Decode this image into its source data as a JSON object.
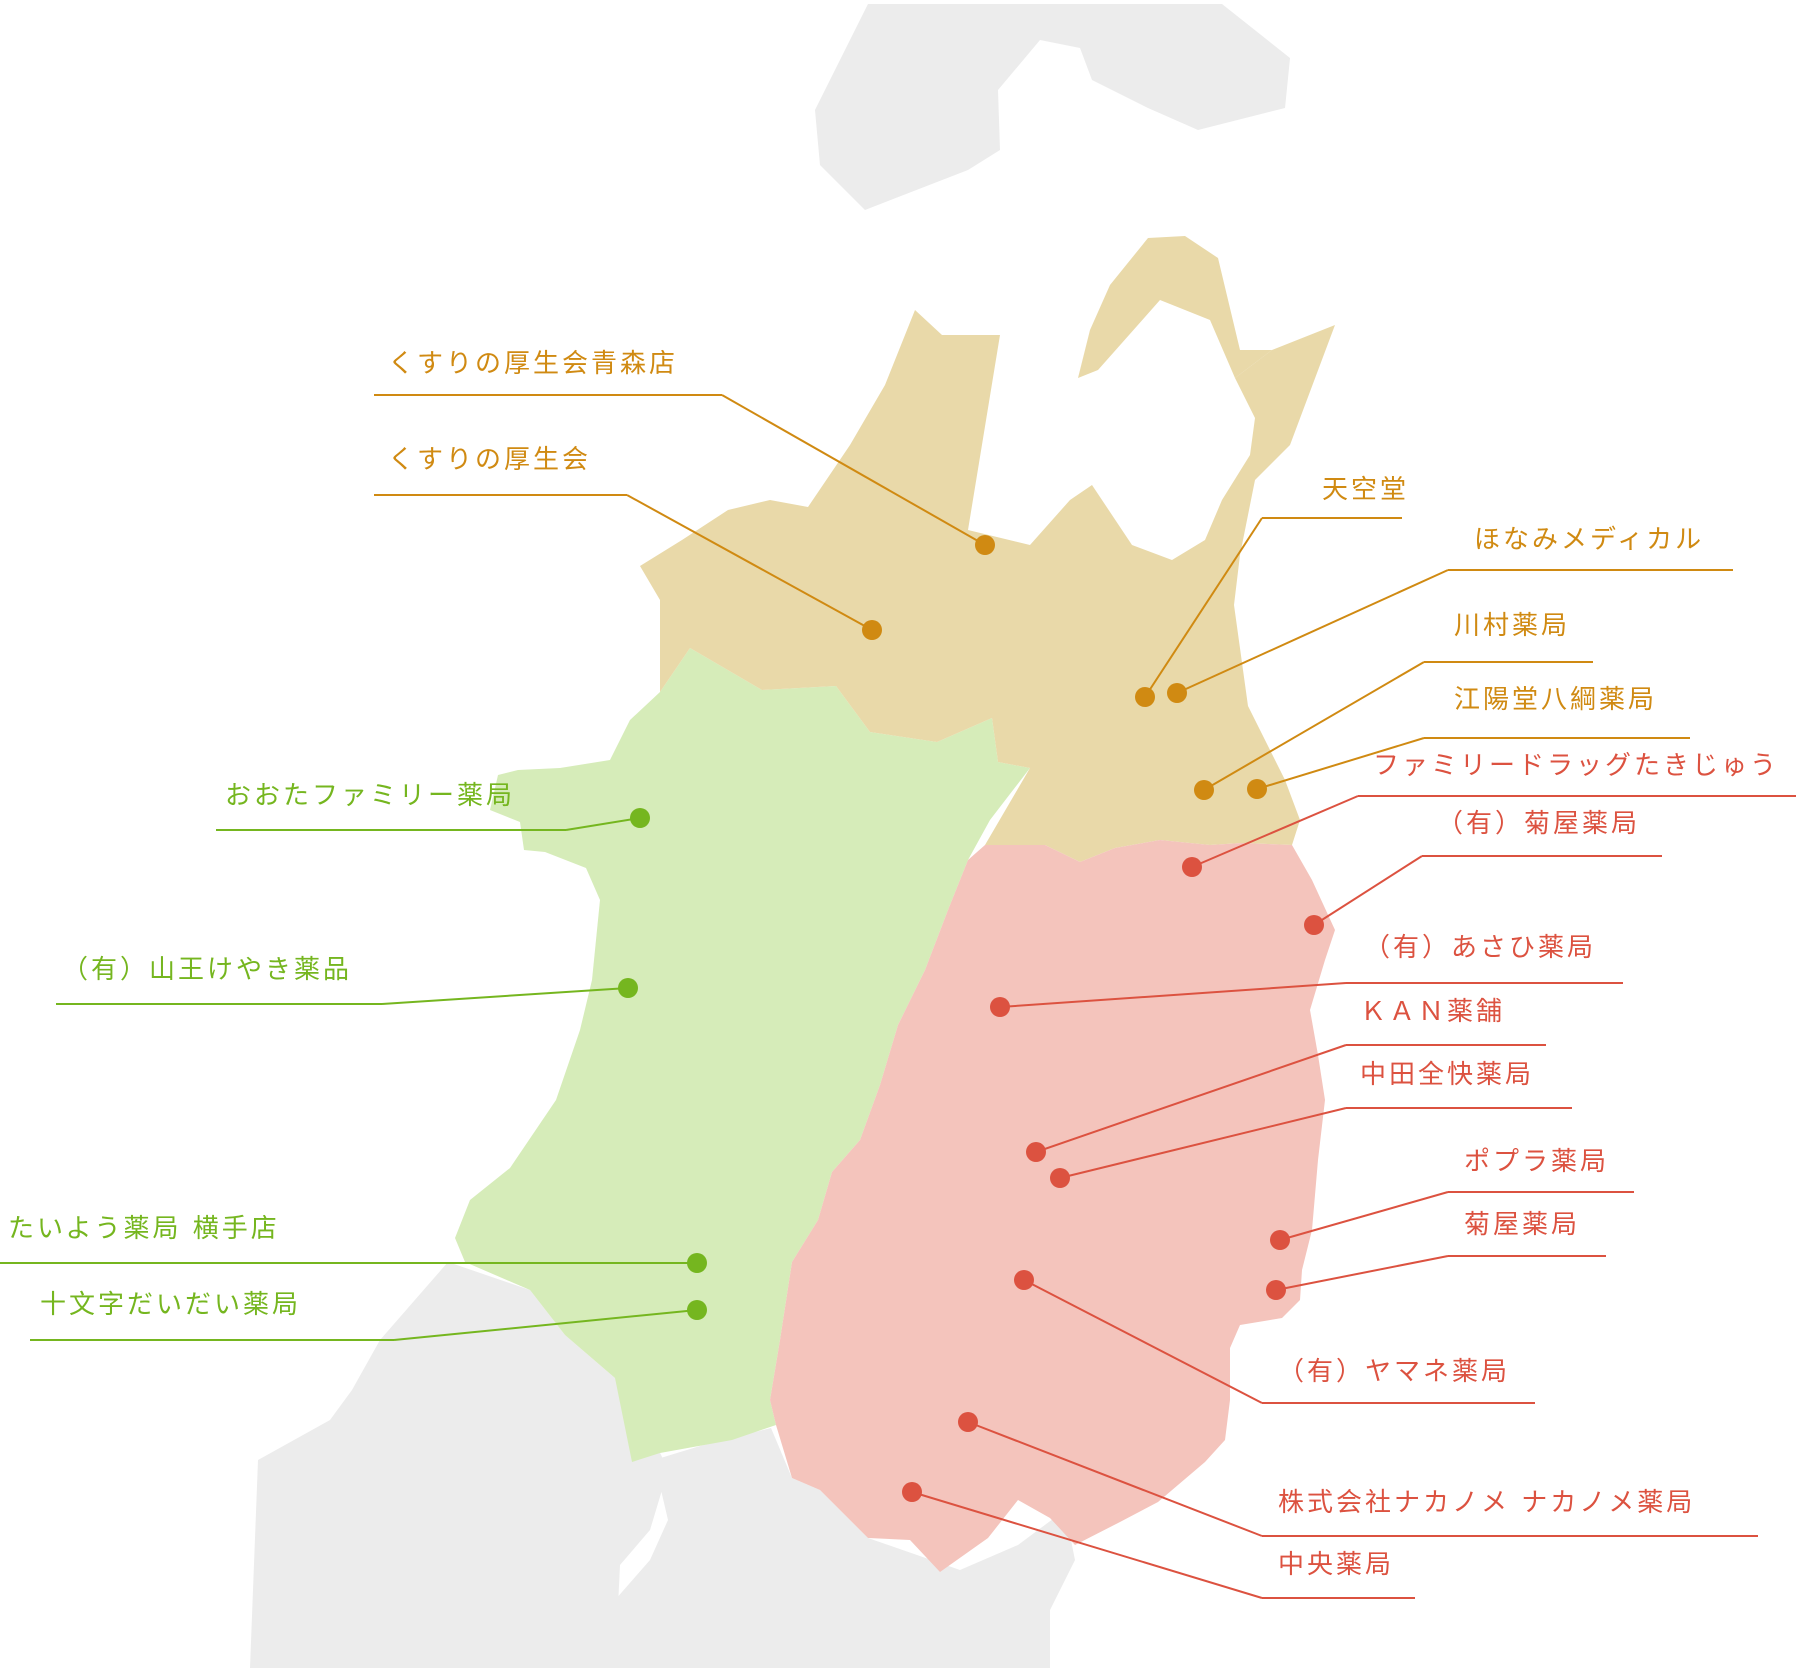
{
  "colors": {
    "background_land": "#ececec",
    "aomori_fill": "#e9d9a9",
    "akita_fill": "#d6ecb9",
    "iwate_fill": "#f4c4bc",
    "aomori_accent": "#d08a12",
    "akita_accent": "#75b61f",
    "iwate_accent": "#dc5240"
  },
  "regions": [
    {
      "name": "aomori",
      "color_key": "aomori_fill"
    },
    {
      "name": "akita",
      "color_key": "akita_fill"
    },
    {
      "name": "iwate",
      "color_key": "iwate_fill"
    }
  ],
  "pharmacies": [
    {
      "label": "くすりの厚生会青森店",
      "region": "aomori"
    },
    {
      "label": "くすりの厚生会",
      "region": "aomori"
    },
    {
      "label": "天空堂",
      "region": "aomori"
    },
    {
      "label": "ほなみメディカル",
      "region": "aomori"
    },
    {
      "label": "川村薬局",
      "region": "aomori"
    },
    {
      "label": "江陽堂八綱薬局",
      "region": "aomori"
    },
    {
      "label": "ファミリードラッグたきじゅう",
      "region": "iwate"
    },
    {
      "label": "（有）菊屋薬局",
      "region": "iwate"
    },
    {
      "label": "（有）あさひ薬局",
      "region": "iwate"
    },
    {
      "label": "ＫＡＮ薬舗",
      "region": "iwate"
    },
    {
      "label": "中田全快薬局",
      "region": "iwate"
    },
    {
      "label": "ポプラ薬局",
      "region": "iwate"
    },
    {
      "label": "菊屋薬局",
      "region": "iwate"
    },
    {
      "label": "（有）ヤマネ薬局",
      "region": "iwate"
    },
    {
      "label": "株式会社ナカノメ ナカノメ薬局",
      "region": "iwate"
    },
    {
      "label": "中央薬局",
      "region": "iwate"
    },
    {
      "label": "おおたファミリー薬局",
      "region": "akita"
    },
    {
      "label": "（有）山王けやき薬品",
      "region": "akita"
    },
    {
      "label": "たいよう薬局 横手店",
      "region": "akita"
    },
    {
      "label": "十文字だいだい薬局",
      "region": "akita"
    }
  ]
}
